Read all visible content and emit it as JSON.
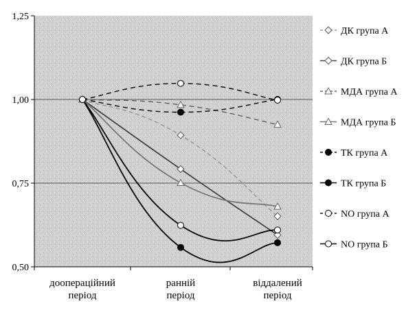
{
  "chart_data": {
    "type": "line",
    "title": "",
    "xlabel": "",
    "ylabel": "",
    "ylim": [
      0.5,
      1.25
    ],
    "yticks": [
      "0,50",
      "0,75",
      "1,00",
      "1,25"
    ],
    "ytick_values": [
      0.5,
      0.75,
      1.0,
      1.25
    ],
    "categories": [
      "доопераційний\nперіод",
      "ранній\nперіод",
      "віддалений\nперіод"
    ],
    "grid": "horizontal at 0.75 and 1.00",
    "plot_background": "stippled grey",
    "legend_position": "right",
    "series": [
      {
        "name": "ДК група А",
        "values": [
          1.0,
          0.893,
          0.651
        ],
        "marker": "diamond",
        "line": "dashed-light",
        "color": "#9a9a9a"
      },
      {
        "name": "ДК група Б",
        "values": [
          1.0,
          0.792,
          0.595
        ],
        "marker": "diamond",
        "line": "solid",
        "color": "#444444"
      },
      {
        "name": "МДА група А",
        "values": [
          1.0,
          0.984,
          0.925
        ],
        "marker": "triangle",
        "line": "dashed",
        "color": "#666666"
      },
      {
        "name": "МДА група Б",
        "values": [
          1.0,
          0.751,
          0.68
        ],
        "marker": "triangle",
        "line": "solid",
        "color": "#777777"
      },
      {
        "name": "ТК група А",
        "values": [
          1.0,
          0.962,
          1.0
        ],
        "marker": "filled-circle",
        "line": "dashed",
        "color": "#111111"
      },
      {
        "name": "ТК група Б",
        "values": [
          1.0,
          0.558,
          0.572
        ],
        "marker": "filled-circle",
        "line": "solid",
        "color": "#000000"
      },
      {
        "name": "NO група А",
        "values": [
          1.0,
          1.048,
          0.998
        ],
        "marker": "open-circle",
        "line": "dashed",
        "color": "#111111"
      },
      {
        "name": "NO група Б",
        "values": [
          1.0,
          0.624,
          0.61
        ],
        "marker": "open-circle",
        "line": "solid",
        "color": "#000000"
      }
    ]
  }
}
